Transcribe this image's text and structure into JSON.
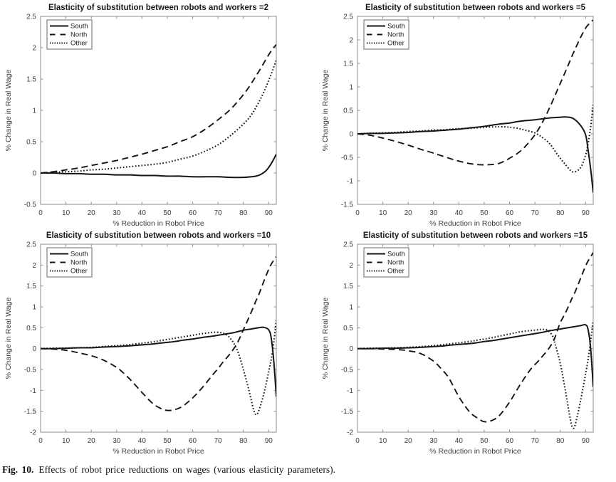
{
  "figure": {
    "caption": {
      "label": "Fig. 10.",
      "text": "Effects of robot price reductions on wages (various elasticity parameters)."
    },
    "colors": {
      "line": "#151515",
      "axis_box": "#8c8c8c",
      "tick_label": "#3d3d3d",
      "title": "#1a1a1a",
      "legend_border": "#6a6a6a",
      "background": "#ffffff"
    },
    "legend_position": "top-left-inside",
    "grid": "off"
  },
  "chart_data": [
    {
      "type": "line",
      "title": "Elasticity of substitution between robots and workers =2",
      "xlabel": "% Reduction in Robot Price",
      "ylabel": "% Change in Real Wage",
      "xlim": [
        0,
        93
      ],
      "ylim": [
        -0.5,
        2.5
      ],
      "xticks": [
        0,
        10,
        20,
        30,
        40,
        50,
        60,
        70,
        80,
        90
      ],
      "xtick_labels": [
        "0",
        "10",
        "20",
        "30",
        "40",
        "50",
        "60",
        "70",
        "80",
        "90"
      ],
      "yticks": [
        -0.5,
        0,
        0.5,
        1,
        1.5,
        2,
        2.5
      ],
      "ytick_labels": [
        "-0.5",
        "0",
        "0.5",
        "1",
        "1.5",
        "2",
        "2.5"
      ],
      "legend": [
        "South",
        "North",
        "Other"
      ],
      "x": [
        0,
        5,
        10,
        15,
        20,
        25,
        30,
        35,
        40,
        45,
        50,
        55,
        60,
        65,
        70,
        75,
        80,
        83,
        85,
        87,
        89,
        91,
        93
      ],
      "series": [
        {
          "name": "South",
          "style": "solid",
          "y": [
            0,
            0,
            -0.01,
            -0.01,
            -0.02,
            -0.02,
            -0.03,
            -0.03,
            -0.04,
            -0.04,
            -0.05,
            -0.05,
            -0.06,
            -0.06,
            -0.06,
            -0.07,
            -0.07,
            -0.06,
            -0.05,
            -0.02,
            0.04,
            0.15,
            0.3
          ]
        },
        {
          "name": "North",
          "style": "dashed",
          "y": [
            0,
            0.02,
            0.05,
            0.08,
            0.12,
            0.16,
            0.2,
            0.25,
            0.3,
            0.36,
            0.42,
            0.5,
            0.58,
            0.7,
            0.85,
            1.02,
            1.25,
            1.42,
            1.55,
            1.68,
            1.82,
            1.95,
            2.05
          ]
        },
        {
          "name": "Other",
          "style": "dotted",
          "y": [
            0,
            0.01,
            0.02,
            0.03,
            0.05,
            0.06,
            0.08,
            0.1,
            0.12,
            0.14,
            0.17,
            0.22,
            0.27,
            0.35,
            0.45,
            0.6,
            0.78,
            0.92,
            1.05,
            1.2,
            1.38,
            1.58,
            1.8
          ]
        }
      ]
    },
    {
      "type": "line",
      "title": "Elasticity of substitution between robots and workers =5",
      "xlabel": "% Reduction in Robot Price",
      "ylabel": "% Change in Real Wage",
      "xlim": [
        0,
        93
      ],
      "ylim": [
        -1.5,
        2.5
      ],
      "xticks": [
        0,
        10,
        20,
        30,
        40,
        50,
        60,
        70,
        80,
        90
      ],
      "xtick_labels": [
        "0",
        "10",
        "20",
        "30",
        "40",
        "50",
        "60",
        "70",
        "80",
        "90"
      ],
      "yticks": [
        -1.5,
        -1,
        -0.5,
        0,
        0.5,
        1,
        1.5,
        2,
        2.5
      ],
      "ytick_labels": [
        "-1.5",
        "-1",
        "-0.5",
        "0",
        "0.5",
        "1",
        "1.5",
        "2",
        "2.5"
      ],
      "legend": [
        "South",
        "North",
        "Other"
      ],
      "x": [
        0,
        5,
        10,
        15,
        20,
        25,
        30,
        35,
        40,
        45,
        50,
        55,
        58,
        60,
        63,
        66,
        70,
        73,
        76,
        79,
        82,
        85,
        88,
        90,
        91,
        92,
        93
      ],
      "series": [
        {
          "name": "South",
          "style": "solid",
          "y": [
            0,
            0.01,
            0.01,
            0.02,
            0.03,
            0.05,
            0.06,
            0.08,
            0.1,
            0.13,
            0.16,
            0.2,
            0.22,
            0.23,
            0.26,
            0.28,
            0.3,
            0.32,
            0.34,
            0.35,
            0.36,
            0.33,
            0.18,
            -0.02,
            -0.35,
            -0.75,
            -1.25
          ]
        },
        {
          "name": "North",
          "style": "dashed",
          "y": [
            0,
            -0.03,
            -0.09,
            -0.16,
            -0.24,
            -0.33,
            -0.41,
            -0.5,
            -0.58,
            -0.64,
            -0.66,
            -0.64,
            -0.58,
            -0.52,
            -0.42,
            -0.28,
            -0.02,
            0.25,
            0.58,
            0.95,
            1.32,
            1.7,
            2.05,
            2.25,
            2.32,
            2.38,
            2.42
          ]
        },
        {
          "name": "Other",
          "style": "dotted",
          "y": [
            0,
            0.01,
            0.02,
            0.03,
            0.05,
            0.06,
            0.08,
            0.09,
            0.11,
            0.12,
            0.14,
            0.15,
            0.15,
            0.14,
            0.12,
            0.08,
            0.02,
            -0.08,
            -0.22,
            -0.45,
            -0.65,
            -0.81,
            -0.72,
            -0.45,
            -0.2,
            0.15,
            0.62
          ]
        }
      ]
    },
    {
      "type": "line",
      "title": "Elasticity of substitution between robots and workers =10",
      "xlabel": "% Reduction in Robot Price",
      "ylabel": "% Change in Real Wage",
      "xlim": [
        0,
        93
      ],
      "ylim": [
        -2,
        2.5
      ],
      "xticks": [
        0,
        10,
        20,
        30,
        40,
        50,
        60,
        70,
        80,
        90
      ],
      "xtick_labels": [
        "0",
        "10",
        "20",
        "30",
        "40",
        "50",
        "60",
        "70",
        "80",
        "90"
      ],
      "yticks": [
        -2,
        -1.5,
        -1,
        -0.5,
        0,
        0.5,
        1,
        1.5,
        2,
        2.5
      ],
      "ytick_labels": [
        "-2",
        "-1.5",
        "-1",
        "-0.5",
        "0",
        "0.5",
        "1",
        "1.5",
        "2",
        "2.5"
      ],
      "legend": [
        "South",
        "North",
        "Other"
      ],
      "x": [
        0,
        5,
        10,
        15,
        20,
        25,
        30,
        33,
        36,
        40,
        44,
        47,
        50,
        53,
        56,
        60,
        64,
        68,
        70,
        72,
        74,
        76,
        78,
        80,
        82,
        84,
        85,
        86,
        88,
        90,
        91,
        92,
        93
      ],
      "series": [
        {
          "name": "South",
          "style": "solid",
          "y": [
            0,
            0,
            0.01,
            0.02,
            0.02,
            0.04,
            0.05,
            0.06,
            0.07,
            0.09,
            0.11,
            0.13,
            0.15,
            0.17,
            0.2,
            0.23,
            0.27,
            0.3,
            0.32,
            0.34,
            0.36,
            0.38,
            0.41,
            0.44,
            0.46,
            0.48,
            0.49,
            0.5,
            0.51,
            0.45,
            0.25,
            -0.3,
            -1.15
          ]
        },
        {
          "name": "North",
          "style": "dashed",
          "y": [
            0,
            -0.01,
            -0.04,
            -0.1,
            -0.17,
            -0.28,
            -0.45,
            -0.6,
            -0.78,
            -1.05,
            -1.3,
            -1.42,
            -1.48,
            -1.46,
            -1.38,
            -1.18,
            -0.92,
            -0.62,
            -0.48,
            -0.32,
            -0.18,
            -0.02,
            0.18,
            0.45,
            0.72,
            1.0,
            1.15,
            1.28,
            1.6,
            1.9,
            2.02,
            2.12,
            2.2
          ]
        },
        {
          "name": "Other",
          "style": "dotted",
          "y": [
            0,
            0.01,
            0.01,
            0.02,
            0.03,
            0.05,
            0.07,
            0.08,
            0.1,
            0.13,
            0.16,
            0.19,
            0.22,
            0.25,
            0.28,
            0.32,
            0.36,
            0.39,
            0.39,
            0.37,
            0.3,
            0.15,
            -0.1,
            -0.5,
            -0.95,
            -1.45,
            -1.58,
            -1.5,
            -1.1,
            -0.55,
            -0.25,
            0.15,
            0.68
          ]
        }
      ]
    },
    {
      "type": "line",
      "title": "Elasticity of substitution between robots and workers =15",
      "xlabel": "% Reduction in Robot Price",
      "ylabel": "% Change in Real Wage",
      "xlim": [
        0,
        93
      ],
      "ylim": [
        -2,
        2.5
      ],
      "xticks": [
        0,
        10,
        20,
        30,
        40,
        50,
        60,
        70,
        80,
        90
      ],
      "xtick_labels": [
        "0",
        "10",
        "20",
        "30",
        "40",
        "50",
        "60",
        "70",
        "80",
        "90"
      ],
      "yticks": [
        -2,
        -1.5,
        -1,
        -0.5,
        0,
        0.5,
        1,
        1.5,
        2,
        2.5
      ],
      "ytick_labels": [
        "-2",
        "-1.5",
        "-1",
        "-0.5",
        "0",
        "0.5",
        "1",
        "1.5",
        "2",
        "2.5"
      ],
      "legend": [
        "South",
        "North",
        "Other"
      ],
      "x": [
        0,
        5,
        10,
        15,
        20,
        25,
        30,
        33,
        36,
        40,
        44,
        47,
        50,
        53,
        56,
        60,
        64,
        68,
        71,
        73,
        75,
        77,
        78,
        80,
        82,
        84,
        85,
        86,
        88,
        90,
        91,
        92,
        93
      ],
      "series": [
        {
          "name": "South",
          "style": "solid",
          "y": [
            0,
            0,
            0.01,
            0.01,
            0.02,
            0.03,
            0.05,
            0.06,
            0.08,
            0.1,
            0.12,
            0.14,
            0.17,
            0.19,
            0.22,
            0.26,
            0.3,
            0.34,
            0.37,
            0.39,
            0.42,
            0.44,
            0.45,
            0.47,
            0.49,
            0.51,
            0.52,
            0.53,
            0.55,
            0.57,
            0.45,
            0,
            -0.92
          ]
        },
        {
          "name": "North",
          "style": "dashed",
          "y": [
            0,
            0,
            -0.01,
            -0.02,
            -0.05,
            -0.12,
            -0.3,
            -0.48,
            -0.7,
            -1.15,
            -1.5,
            -1.65,
            -1.75,
            -1.72,
            -1.6,
            -1.28,
            -0.88,
            -0.52,
            -0.32,
            -0.18,
            -0.04,
            0.15,
            0.28,
            0.62,
            0.85,
            1.12,
            1.25,
            1.38,
            1.68,
            1.98,
            2.1,
            2.2,
            2.3
          ]
        },
        {
          "name": "Other",
          "style": "dotted",
          "y": [
            0,
            0.01,
            0.01,
            0.02,
            0.03,
            0.05,
            0.07,
            0.09,
            0.11,
            0.14,
            0.17,
            0.2,
            0.23,
            0.26,
            0.3,
            0.35,
            0.4,
            0.43,
            0.45,
            0.46,
            0.44,
            0.3,
            0.1,
            -0.35,
            -1.0,
            -1.7,
            -1.9,
            -1.8,
            -1.25,
            -0.6,
            -0.25,
            0.2,
            0.65
          ]
        }
      ]
    }
  ]
}
